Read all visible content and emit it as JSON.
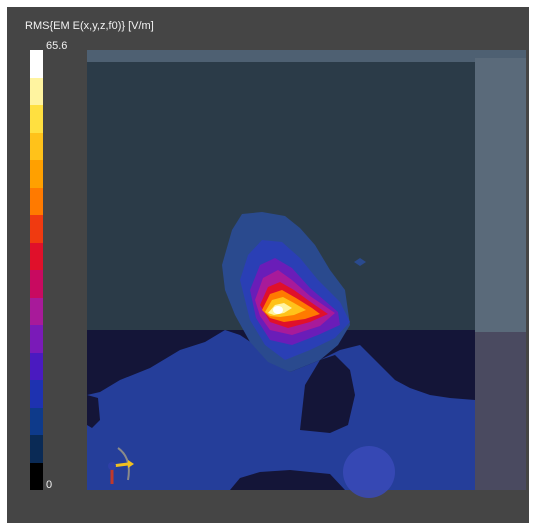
{
  "legend": {
    "title": "RMS{EM E(x,y,z,f0)} [V/m]",
    "max_label": "65.6",
    "min_label": "0",
    "colors": [
      "#ffffff",
      "#fff4a0",
      "#ffe040",
      "#ffc21a",
      "#ffa000",
      "#ff7a00",
      "#f03a10",
      "#e0102a",
      "#c80a60",
      "#a81a9a",
      "#7a1ab8",
      "#4a1ac0",
      "#1e32b0",
      "#0e3a8a",
      "#0a2a55",
      "#000000"
    ]
  },
  "scene": {
    "background_color": "#454545",
    "field_low_color": "#253e9a",
    "void_color": "#141538",
    "air_color": "#2e3d4a"
  },
  "icons": {
    "axes": "axes-orientation-icon"
  }
}
